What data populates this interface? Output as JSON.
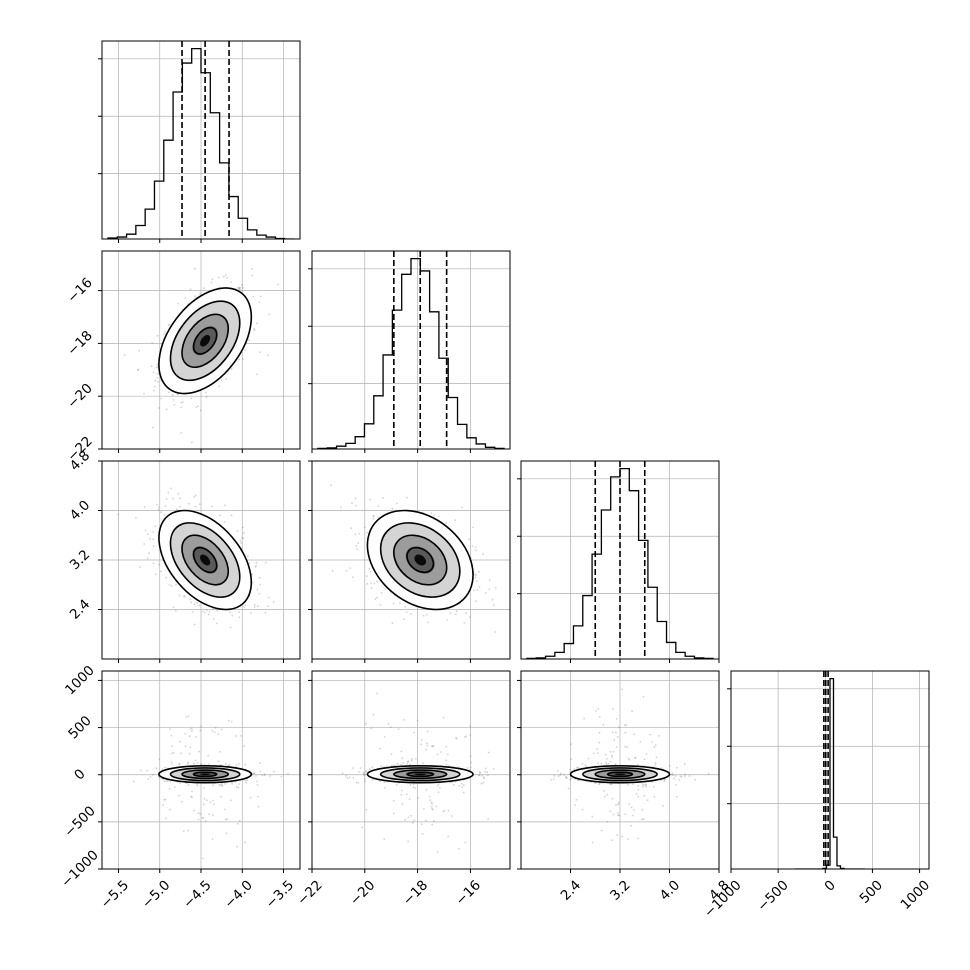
{
  "chart_data": {
    "type": "corner",
    "title": "",
    "parameters": [
      {
        "label": "",
        "range": [
          -5.7,
          -3.3
        ],
        "ticks": [
          -5.5,
          -5.0,
          -4.5,
          -4.0,
          -3.5
        ],
        "tick_labels": [
          "−5.5",
          "−5.0",
          "−4.5",
          "−4.0",
          "−3.5"
        ],
        "median": -4.45,
        "sigma": 0.28,
        "quantiles": [
          -4.73,
          -4.45,
          -4.16
        ]
      },
      {
        "label": "",
        "range": [
          -22,
          -14.5
        ],
        "ticks": [
          -22,
          -20,
          -18,
          -16
        ],
        "tick_labels": [
          "−22",
          "−20",
          "−18",
          "−16"
        ],
        "median": -17.9,
        "sigma": 1.0,
        "quantiles": [
          -18.9,
          -17.9,
          -16.9
        ]
      },
      {
        "label": "",
        "range": [
          1.6,
          4.8
        ],
        "ticks": [
          2.4,
          3.2,
          4.0,
          4.8
        ],
        "tick_labels": [
          "2.4",
          "3.2",
          "4.0",
          "4.8"
        ],
        "median": 3.2,
        "sigma": 0.4,
        "quantiles": [
          2.8,
          3.2,
          3.6
        ]
      },
      {
        "label": "",
        "range": [
          -1000,
          1100
        ],
        "ticks": [
          -1000,
          -500,
          0,
          500,
          1000
        ],
        "tick_labels": [
          "−1000",
          "−500",
          "0",
          "500",
          "1000"
        ],
        "median": 5,
        "sigma": 20,
        "quantiles": [
          -15,
          5,
          30
        ]
      }
    ],
    "histograms": [
      {
        "param": 0,
        "bins": 20,
        "counts": [
          2,
          4,
          10,
          28,
          62,
          120,
          205,
          305,
          365,
          395,
          345,
          262,
          158,
          88,
          43,
          19,
          8,
          4,
          1,
          0
        ]
      },
      {
        "param": 1,
        "bins": 20,
        "counts": [
          1,
          2,
          5,
          10,
          22,
          45,
          95,
          168,
          248,
          312,
          340,
          318,
          245,
          162,
          92,
          44,
          20,
          9,
          3,
          1
        ]
      },
      {
        "param": 2,
        "bins": 20,
        "counts": [
          1,
          2,
          5,
          12,
          28,
          60,
          115,
          190,
          270,
          330,
          345,
          305,
          215,
          130,
          68,
          30,
          12,
          5,
          2,
          1
        ]
      },
      {
        "param": 3,
        "bins": 20,
        "counts": [
          0,
          0,
          0,
          0,
          0,
          0,
          0,
          0,
          3,
          20,
          985,
          165,
          16,
          3,
          0,
          0,
          0,
          0,
          0,
          0
        ]
      }
    ],
    "scatter_pairs": [
      {
        "x": 0,
        "y": 1,
        "correlation": 0.45
      },
      {
        "x": 0,
        "y": 2,
        "correlation": -0.45
      },
      {
        "x": 1,
        "y": 2,
        "correlation": -0.3
      },
      {
        "x": 0,
        "y": 3,
        "correlation": 0.0
      },
      {
        "x": 1,
        "y": 3,
        "correlation": 0.0
      },
      {
        "x": 2,
        "y": 3,
        "correlation": 0.0
      }
    ],
    "grid": true,
    "legend": "none"
  }
}
